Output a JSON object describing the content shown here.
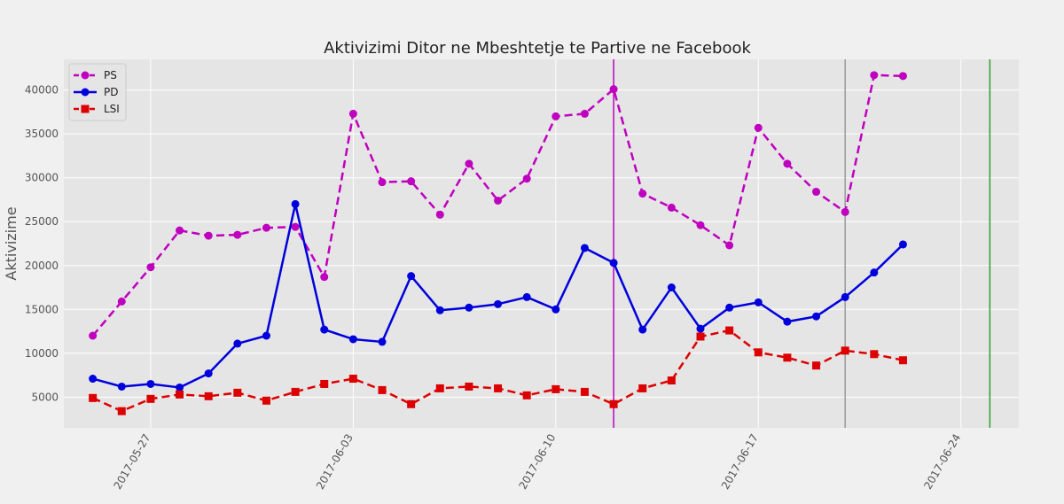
{
  "chart_data": {
    "type": "line",
    "title": "Aktivizimi Ditor ne Mbeshtetje te Partive ne Facebook",
    "xlabel": "",
    "ylabel": "Aktivizime",
    "x": [
      "2017-05-25",
      "2017-05-26",
      "2017-05-27",
      "2017-05-28",
      "2017-05-29",
      "2017-05-30",
      "2017-05-31",
      "2017-06-01",
      "2017-06-02",
      "2017-06-03",
      "2017-06-04",
      "2017-06-05",
      "2017-06-06",
      "2017-06-07",
      "2017-06-08",
      "2017-06-09",
      "2017-06-10",
      "2017-06-11",
      "2017-06-12",
      "2017-06-13",
      "2017-06-14",
      "2017-06-15",
      "2017-06-16",
      "2017-06-17",
      "2017-06-18",
      "2017-06-19",
      "2017-06-20",
      "2017-06-21",
      "2017-06-22",
      "2017-06-23"
    ],
    "xlim": [
      "2017-05-24",
      "2017-06-26"
    ],
    "ylim": [
      1500,
      43500
    ],
    "x_ticks": [
      "2017-05-27",
      "2017-06-03",
      "2017-06-10",
      "2017-06-17",
      "2017-06-24"
    ],
    "y_ticks": [
      5000,
      10000,
      15000,
      20000,
      25000,
      30000,
      35000,
      40000
    ],
    "grid": true,
    "legend_position": "top-left",
    "series": [
      {
        "name": "PS",
        "color": "#bf00bf",
        "marker": "circle",
        "line_style": "dashed",
        "values": [
          12000,
          15900,
          19800,
          24000,
          23400,
          23500,
          24300,
          24400,
          18700,
          37300,
          29500,
          29600,
          25800,
          31600,
          27400,
          29900,
          37000,
          37300,
          40100,
          28200,
          26600,
          24600,
          22300,
          35700,
          31600,
          28400,
          26100,
          41700,
          41600,
          null
        ]
      },
      {
        "name": "PD",
        "color": "#0000dd",
        "marker": "circle",
        "line_style": "solid",
        "values": [
          7100,
          6200,
          6500,
          6100,
          7700,
          11100,
          12000,
          27000,
          12700,
          11600,
          11300,
          18800,
          14900,
          15200,
          15600,
          16400,
          15000,
          22000,
          20300,
          12700,
          17500,
          12800,
          15200,
          15800,
          13600,
          14200,
          16400,
          19200,
          22400,
          null
        ]
      },
      {
        "name": "LSI",
        "color": "#dd0000",
        "marker": "square",
        "line_style": "dashed",
        "values": [
          4900,
          3400,
          4800,
          5300,
          5100,
          5500,
          4600,
          5600,
          6500,
          7100,
          5800,
          4200,
          6000,
          6200,
          6000,
          5200,
          5900,
          5600,
          4200,
          6000,
          6900,
          11900,
          12600,
          10100,
          9500,
          8600,
          10300,
          9900,
          9200,
          null
        ]
      }
    ],
    "vertical_lines": [
      {
        "date": "2017-06-12",
        "color": "#bf00bf"
      },
      {
        "date": "2017-06-20",
        "color": "#999999"
      },
      {
        "date": "2017-06-25",
        "color": "#2ca02c"
      }
    ]
  }
}
